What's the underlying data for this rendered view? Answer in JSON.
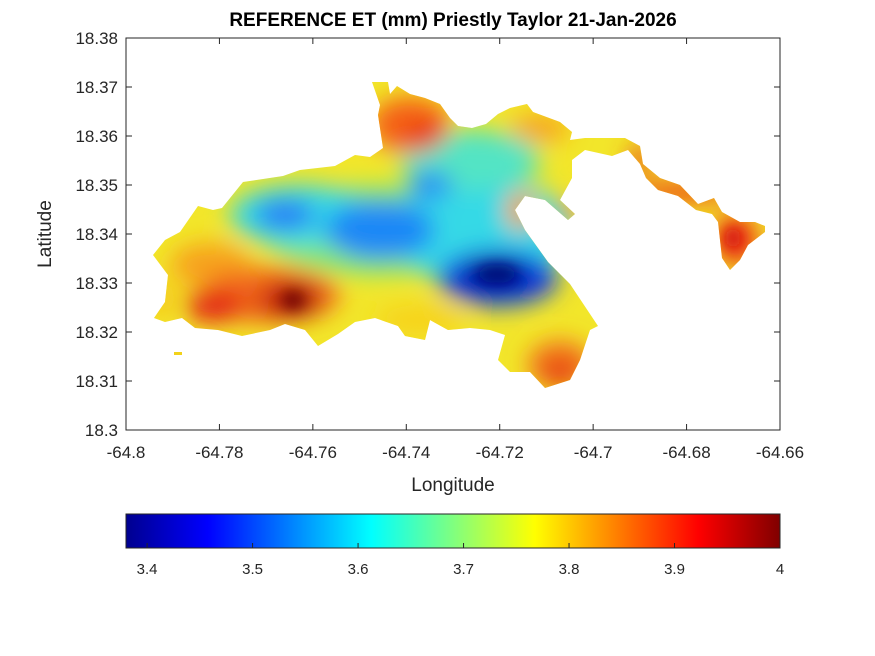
{
  "chart_data": {
    "type": "heatmap",
    "title": "REFERENCE ET (mm) Priestly Taylor 21-Jan-2026",
    "xlabel": "Longitude",
    "ylabel": "Latitude",
    "xlim": [
      -64.8,
      -64.66
    ],
    "ylim": [
      18.3,
      18.38
    ],
    "xticks": [
      "-64.8",
      "-64.78",
      "-64.76",
      "-64.74",
      "-64.72",
      "-64.7",
      "-64.68",
      "-64.66"
    ],
    "yticks": [
      "18.3",
      "18.31",
      "18.32",
      "18.33",
      "18.34",
      "18.35",
      "18.36",
      "18.37",
      "18.38"
    ],
    "colormap": "jet",
    "colorbar": {
      "range": [
        3.38,
        4.0
      ],
      "ticks": [
        "3.4",
        "3.5",
        "3.6",
        "3.7",
        "3.8",
        "3.9",
        "4"
      ],
      "location": "bottom"
    },
    "hotspots": [
      {
        "lon": -64.764,
        "lat": 18.326,
        "value": 4.0
      },
      {
        "lon": -64.782,
        "lat": 18.324,
        "value": 3.93
      },
      {
        "lon": -64.738,
        "lat": 18.361,
        "value": 3.9
      },
      {
        "lon": -64.671,
        "lat": 18.338,
        "value": 3.92
      },
      {
        "lon": -64.723,
        "lat": 18.332,
        "value": 3.4
      },
      {
        "lon": -64.748,
        "lat": 18.34,
        "value": 3.52
      },
      {
        "lon": -64.765,
        "lat": 18.344,
        "value": 3.55
      }
    ]
  }
}
